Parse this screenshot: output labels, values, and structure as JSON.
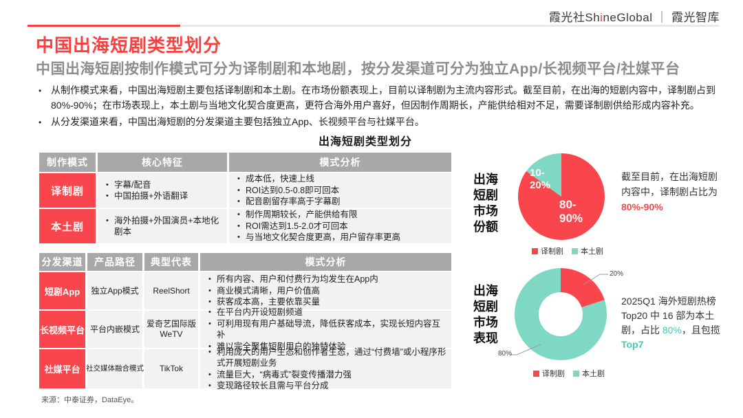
{
  "header": {
    "logo": {
      "prefix": "霞光社Sh",
      "accent": "i",
      "middle": "neGlobal",
      "separator": "｜",
      "suffix": "霞光智库"
    }
  },
  "title": "中国出海短剧类型划分",
  "subtitle": "中国出海短剧按制作模式可分为译制剧和本地剧，按分发渠道可分为独立App/长视频平台/社媒平台",
  "bullets": [
    "从制作模式来看，中国出海短剧主要包括译制剧和本土剧。在市场份额表现上，目前以译制剧为主流内容形式。截至目前，在出海的短剧内容中，译制剧占到80%-90%；在市场表现上，本土剧与当地文化契合度更高，更符合海外用户喜好，但因制作周期长，产能供给相对不足，需要译制剧供给形成内容补充。",
    "从分发渠道来看，中国出海短剧的分发渠道主要包括独立App、长视频平台与社媒平台。"
  ],
  "section_title": "出海短剧类型划分",
  "production_table": {
    "headers": [
      "制作模式",
      "核心特征",
      "模式分析"
    ],
    "rows": [
      {
        "label": "译制剧",
        "features": [
          "字幕/配音",
          "中国拍摄+外语翻译"
        ],
        "analysis": [
          "成本低，快速上线",
          "ROI达到0.5-0.8即可回本",
          "配音剧留存率高于字幕剧"
        ]
      },
      {
        "label": "本土剧",
        "features": [
          "海外拍摄+外国演员+本地化剧本"
        ],
        "analysis": [
          "制作周期较长，产能供给有限",
          "ROI需达到1.5-2.0才可回本",
          "与当地文化契合度更高，用户留存率更高"
        ]
      }
    ]
  },
  "channel_table": {
    "headers": [
      "分发渠道",
      "产品路径",
      "典型代表",
      "模式分析"
    ],
    "rows": [
      {
        "label": "短剧App",
        "path": "独立App模式",
        "representative": "ReelShort",
        "analysis": [
          "所有内容、用户和付费行为均发生在App内",
          "商业模式清晰，用户价值高",
          "获客成本高，主要依靠买量"
        ]
      },
      {
        "label": "长视频平台",
        "path": "平台内嵌模式",
        "representative": "爱奇艺国际版\nWeTV",
        "analysis": [
          "在平台内开设短剧频道",
          "可利用现有用户基础导流，降低获客成本，实现长短内容互补",
          "难以完全聚焦短剧用户的独特体验"
        ]
      },
      {
        "label": "社媒平台",
        "path": "社交媒体融合模式",
        "representative": "TikTok",
        "analysis": [
          "利用庞大的用户生态和创作者生态，通过“付费墙”或小程序形式开展短剧业务",
          "流量巨大，“病毒式”裂变传播潜力强",
          "变现路径较长且需与平台分成"
        ]
      }
    ]
  },
  "chart_data": [
    {
      "type": "pie",
      "title": "出海短剧市场份额",
      "categories": [
        "译制剧",
        "本土剧"
      ],
      "values": [
        85,
        15
      ],
      "value_labels": [
        "80-90%",
        "10-20%"
      ],
      "colors": [
        "#f8464c",
        "#7ed8c4"
      ],
      "legend_position": "bottom",
      "annotation": "截至目前，在出海短剧内容中，译制剧占比为80%-90%"
    },
    {
      "type": "donut",
      "title": "出海短剧市场表现",
      "categories": [
        "译制剧",
        "本土剧"
      ],
      "values": [
        20,
        80
      ],
      "value_labels": [
        "20%",
        "80%"
      ],
      "colors": [
        "#f8464c",
        "#7ed8c4"
      ],
      "legend_position": "bottom",
      "annotation": "2025Q1 海外短剧热榜Top20 中 16 部为本土剧，占比 80%，且包揽Top7"
    }
  ],
  "pie_annotation": {
    "seg1": "截至目前，在出海短剧\n内容中，译制剧占比为\n",
    "highlight": "80%-90%"
  },
  "donut_annotation": {
    "seg1": "2025Q1 海外短剧热榜\nTop20 中 16 部为本土\n剧，占比 ",
    "highlight1": "80%",
    "seg2": "，且包揽\n",
    "highlight2": "Top7"
  },
  "source": "来源：中泰证券，DataEye。",
  "palette": {
    "brand_red": "#fb3e3e",
    "cell_red": "#f8464c",
    "teal": "#7ed8c4",
    "teal_text": "#45c8b2",
    "header_gray": "#a8a8a8",
    "cell_gray": "#f2f2f2"
  }
}
